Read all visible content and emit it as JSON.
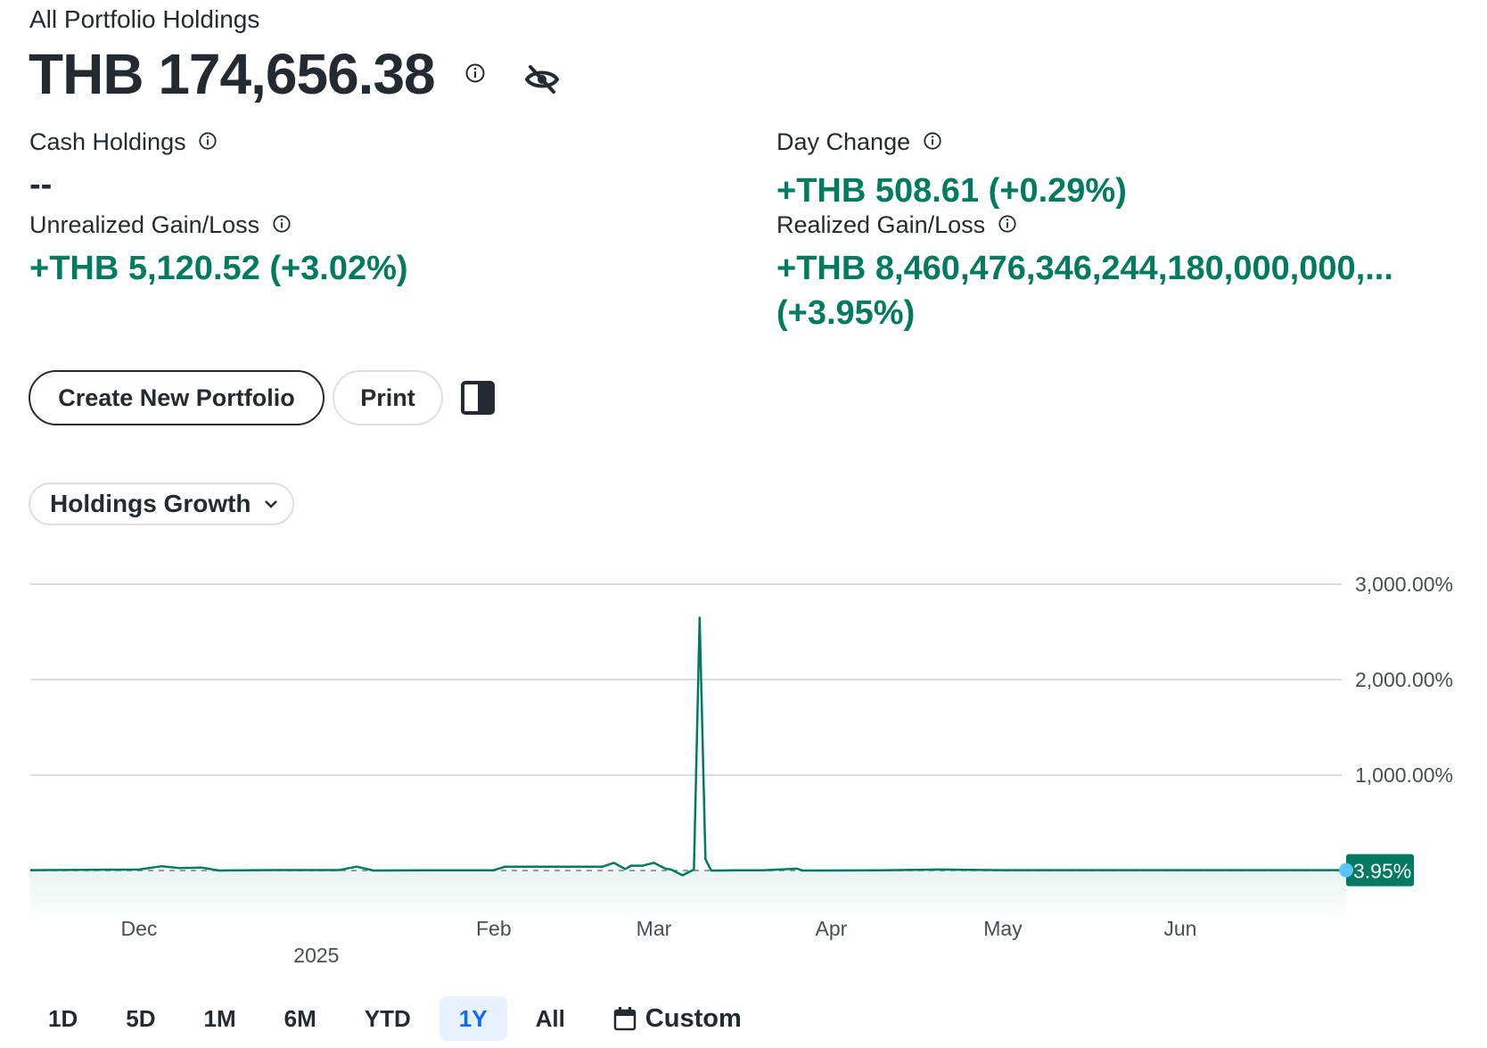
{
  "header": {
    "title": "All Portfolio Holdings",
    "total_value": "THB 174,656.38"
  },
  "stats": {
    "cash_holdings": {
      "label": "Cash Holdings",
      "value": "--"
    },
    "day_change": {
      "label": "Day Change",
      "value": "+THB 508.61 (+0.29%)"
    },
    "unrealized": {
      "label": "Unrealized Gain/Loss",
      "value": "+THB 5,120.52 (+3.02%)"
    },
    "realized": {
      "label": "Realized Gain/Loss",
      "value_line1": "+THB 8,460,476,346,244,180,000,000,...",
      "value_line2": "(+3.95%)"
    }
  },
  "actions": {
    "create_label": "Create New Portfolio",
    "print_label": "Print"
  },
  "chart_selector": {
    "label": "Holdings Growth"
  },
  "chart_data": {
    "type": "line",
    "yticks": [
      "3,000.00%",
      "2,000.00%",
      "1,000.00%"
    ],
    "ytick_values": [
      3000,
      2000,
      1000
    ],
    "ylim": [
      -500,
      3000
    ],
    "x_month_labels": [
      "Dec",
      "Feb",
      "Mar",
      "Apr",
      "May",
      "Jun"
    ],
    "x_year_label": "2025",
    "last_value_label": "3.95%",
    "series": [
      {
        "x": [
          "2024-11-12",
          "2024-12-01",
          "2024-12-05",
          "2024-12-08",
          "2024-12-12",
          "2024-12-15",
          "2024-12-25",
          "2025-01-05",
          "2025-01-08",
          "2025-01-11",
          "2025-01-20",
          "2025-02-01",
          "2025-02-03",
          "2025-02-15",
          "2025-02-20",
          "2025-02-22",
          "2025-02-24",
          "2025-02-25",
          "2025-02-27",
          "2025-03-01",
          "2025-03-03",
          "2025-03-04",
          "2025-03-06",
          "2025-03-08",
          "2025-03-09",
          "2025-03-10",
          "2025-03-11",
          "2025-03-13",
          "2025-03-15",
          "2025-03-20",
          "2025-03-26",
          "2025-03-27",
          "2025-03-30",
          "2025-04-10",
          "2025-04-20",
          "2025-05-01",
          "2025-06-01",
          "2025-06-30"
        ],
        "y": [
          3.95,
          10,
          45,
          25,
          30,
          0,
          5,
          5,
          40,
          0,
          3,
          3,
          40,
          40,
          40,
          80,
          15,
          50,
          50,
          80,
          20,
          10,
          -50,
          10,
          2650,
          120,
          0,
          0,
          3,
          3,
          20,
          0,
          0,
          3,
          10,
          3.95,
          3.95,
          3.95
        ]
      }
    ],
    "colors": {
      "line": "#017b5f",
      "grid": "#d9dde1",
      "marker": "#5cc4f6",
      "label_bg": "#017b5f"
    }
  },
  "range_buttons": [
    "1D",
    "5D",
    "1M",
    "6M",
    "YTD",
    "1Y",
    "All"
  ],
  "range_active": "1Y",
  "custom_label": "Custom"
}
